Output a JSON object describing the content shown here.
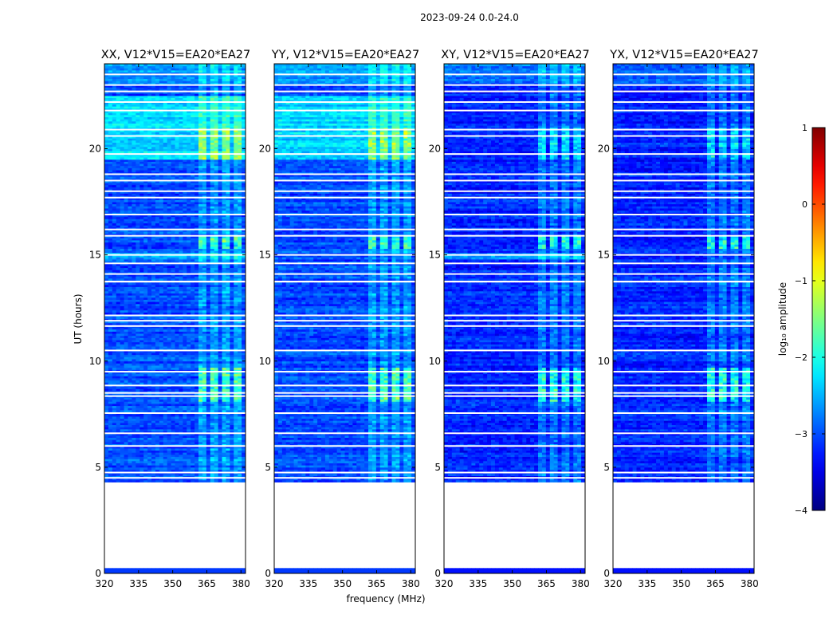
{
  "figure": {
    "suptitle": "2023-09-24 0.0-24.0"
  },
  "chart_data": {
    "type": "heatmap",
    "ylabel": "UT (hours)",
    "xlabel": "frequency (MHz)",
    "xlim": [
      320,
      382
    ],
    "ylim": [
      0,
      24
    ],
    "xticks": [
      320,
      335,
      350,
      365,
      380
    ],
    "yticks": [
      0,
      5,
      10,
      15,
      20
    ],
    "colorbar": {
      "label": "log₁₀ amplitude",
      "range": [
        -4,
        1
      ],
      "ticks": [
        1,
        0,
        -1,
        -2,
        -3,
        -4
      ],
      "colormap": "jet"
    },
    "data_ranges_hours": [
      [
        0.0,
        0.25
      ],
      [
        4.3,
        13.7
      ],
      [
        13.8,
        24.0
      ]
    ],
    "empty_gaps_hours": [
      [
        0.25,
        4.3
      ],
      [
        13.7,
        13.8
      ]
    ],
    "panels": [
      {
        "title": "XX, V12*V15=EA20*EA27",
        "polarization": "XX",
        "base_level": -3.0,
        "rfi_band_MHz": [
          360,
          380
        ]
      },
      {
        "title": "YY, V12*V15=EA20*EA27",
        "polarization": "YY",
        "base_level": -3.0,
        "rfi_band_MHz": [
          360,
          380
        ]
      },
      {
        "title": "XY, V12*V15=EA20*EA27",
        "polarization": "XY",
        "base_level": -3.2,
        "rfi_band_MHz": [
          360,
          380
        ]
      },
      {
        "title": "YX, V12*V15=EA20*EA27",
        "polarization": "YX",
        "base_level": -3.2,
        "rfi_band_MHz": [
          360,
          380
        ]
      }
    ]
  }
}
